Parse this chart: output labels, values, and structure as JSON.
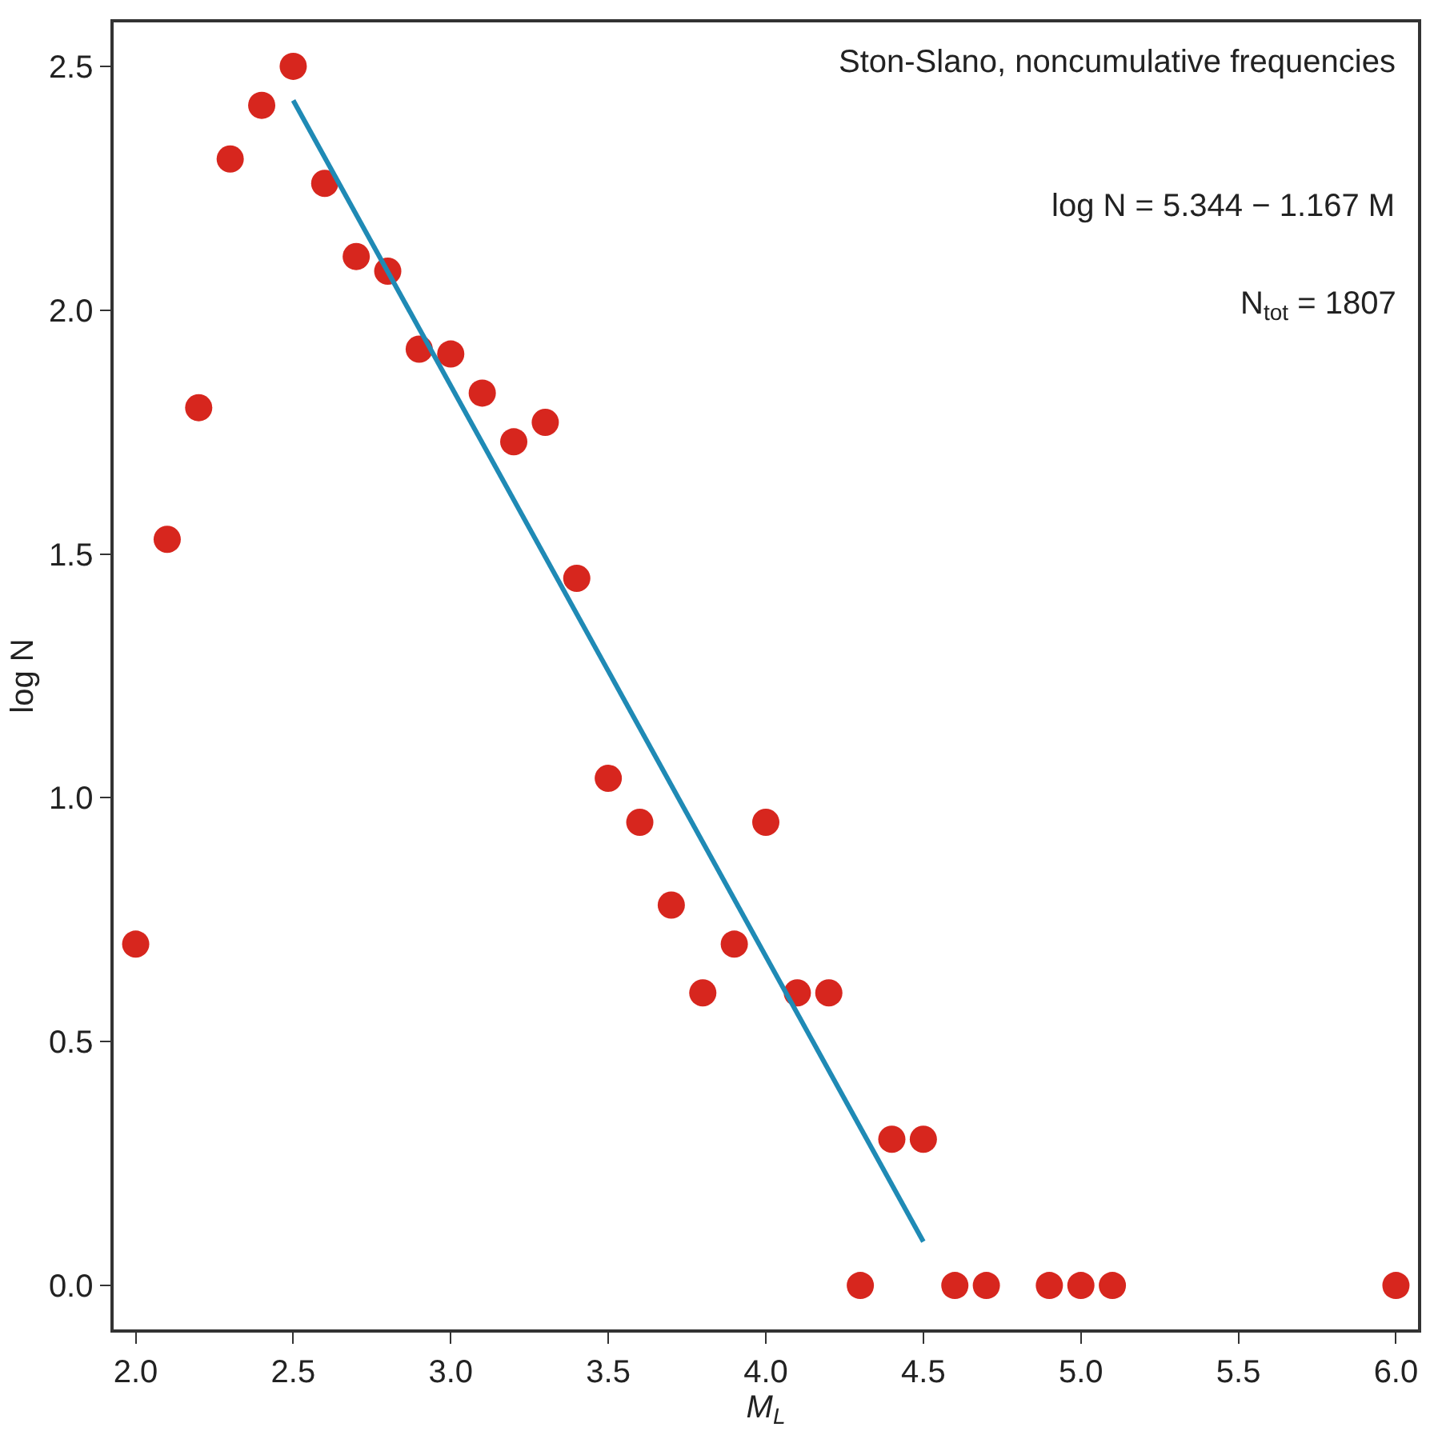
{
  "chart_data": {
    "type": "scatter",
    "xlabel": "M$_{L}$",
    "ylabel": "log N",
    "annotations": [
      "Ston-Slano, noncumulative frequencies",
      "log N = 5.344 − 1.167 M",
      "N$_{tot}$ = 1807"
    ],
    "xlim": [
      1.93,
      6.07
    ],
    "xticks": [
      {
        "value": 2.0,
        "label": "2.0"
      },
      {
        "value": 2.5,
        "label": "2.5"
      },
      {
        "value": 3.0,
        "label": "3.0"
      },
      {
        "value": 3.5,
        "label": "3.5"
      },
      {
        "value": 4.0,
        "label": "4.0"
      },
      {
        "value": 4.5,
        "label": "4.5"
      },
      {
        "value": 5.0,
        "label": "5.0"
      },
      {
        "value": 5.5,
        "label": "5.5"
      },
      {
        "value": 6.0,
        "label": "6.0"
      }
    ],
    "ylim": [
      -0.09,
      2.59
    ],
    "yticks": [
      {
        "value": 0.0,
        "label": "0.0"
      },
      {
        "value": 0.5,
        "label": "0.5"
      },
      {
        "value": 1.0,
        "label": "1.0"
      },
      {
        "value": 1.5,
        "label": "1.5"
      },
      {
        "value": 2.0,
        "label": "2.0"
      },
      {
        "value": 2.5,
        "label": "2.5"
      }
    ],
    "legend": false,
    "series": [
      {
        "marker": "circle",
        "color": "#d7261e",
        "x": [
          2.0,
          2.1,
          2.2,
          2.3,
          2.4,
          2.5,
          2.6,
          2.7,
          2.8,
          2.9,
          3.0,
          3.1,
          3.2,
          3.3,
          3.4,
          3.5,
          3.6,
          3.7,
          3.8,
          3.9,
          4.0,
          4.1,
          4.2,
          4.3,
          4.4,
          4.5,
          4.6,
          4.7,
          4.9,
          5.0,
          5.1,
          6.0
        ],
        "values": [
          0.7,
          1.53,
          1.8,
          2.31,
          2.42,
          2.5,
          2.26,
          2.11,
          2.08,
          1.92,
          1.91,
          1.83,
          1.73,
          1.77,
          1.45,
          1.04,
          0.95,
          0.78,
          0.6,
          0.7,
          0.95,
          0.6,
          0.6,
          0.0,
          0.3,
          0.3,
          0.0,
          0.0,
          0.0,
          0.0,
          0.0,
          0.0
        ]
      },
      {
        "type": "line",
        "color": "#1f8ab5",
        "x": [
          2.5,
          4.5
        ],
        "values": [
          2.43,
          0.09
        ]
      }
    ]
  }
}
